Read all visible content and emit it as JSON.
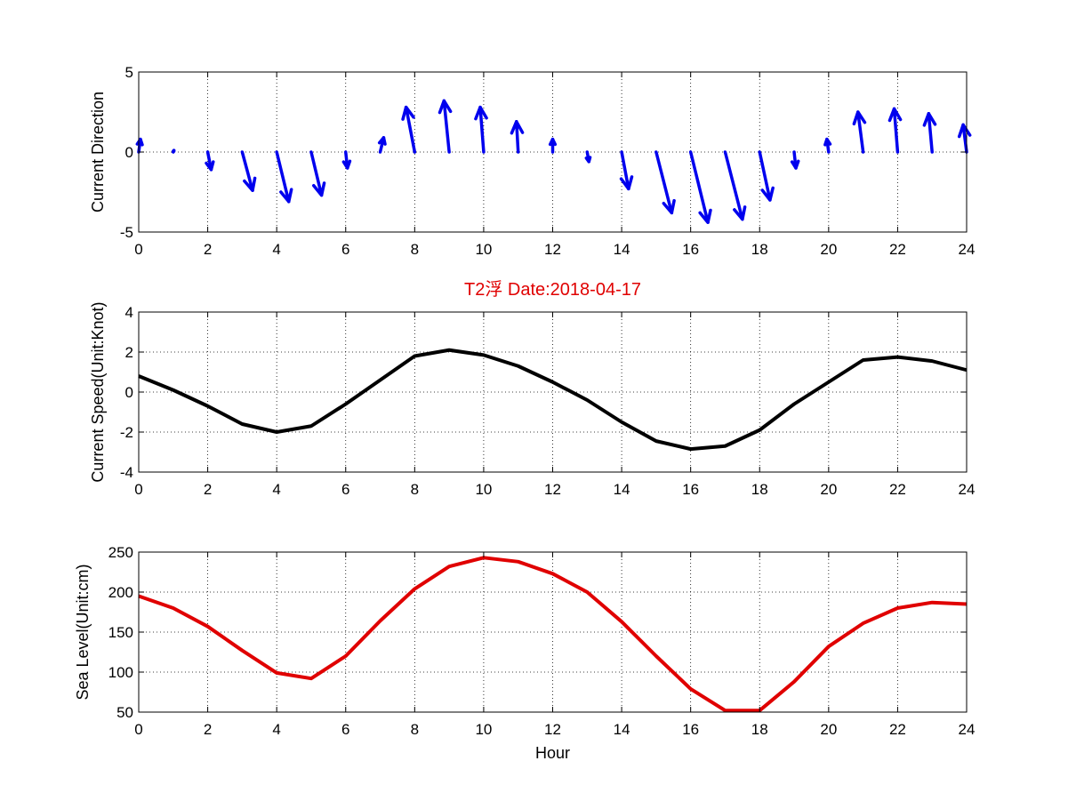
{
  "chart_data": [
    {
      "type": "quiver",
      "id": "direction",
      "title": "",
      "xlabel": "",
      "ylabel": "Current Direction",
      "xlim": [
        0,
        24
      ],
      "ylim": [
        -5,
        5
      ],
      "xticks": [
        0,
        2,
        4,
        6,
        8,
        10,
        12,
        14,
        16,
        18,
        20,
        22,
        24
      ],
      "yticks": [
        -5,
        0,
        5
      ],
      "grid": true,
      "color": "#0000ee",
      "vectors": [
        {
          "x": 0,
          "u": 0.05,
          "v": 0.8
        },
        {
          "x": 1,
          "u": 0.02,
          "v": 0.1
        },
        {
          "x": 2,
          "u": 0.1,
          "v": -1.1
        },
        {
          "x": 3,
          "u": 0.3,
          "v": -2.4
        },
        {
          "x": 4,
          "u": 0.35,
          "v": -3.1
        },
        {
          "x": 5,
          "u": 0.3,
          "v": -2.7
        },
        {
          "x": 6,
          "u": 0.05,
          "v": -1.0
        },
        {
          "x": 7,
          "u": 0.1,
          "v": 0.9
        },
        {
          "x": 8,
          "u": -0.25,
          "v": 2.8
        },
        {
          "x": 9,
          "u": -0.15,
          "v": 3.2
        },
        {
          "x": 10,
          "u": -0.1,
          "v": 2.8
        },
        {
          "x": 11,
          "u": -0.05,
          "v": 1.9
        },
        {
          "x": 12,
          "u": 0.0,
          "v": 0.8
        },
        {
          "x": 13,
          "u": 0.05,
          "v": -0.6
        },
        {
          "x": 14,
          "u": 0.2,
          "v": -2.3
        },
        {
          "x": 15,
          "u": 0.45,
          "v": -3.8
        },
        {
          "x": 16,
          "u": 0.5,
          "v": -4.4
        },
        {
          "x": 17,
          "u": 0.5,
          "v": -4.2
        },
        {
          "x": 18,
          "u": 0.3,
          "v": -3.0
        },
        {
          "x": 19,
          "u": 0.05,
          "v": -1.0
        },
        {
          "x": 20,
          "u": -0.05,
          "v": 0.8
        },
        {
          "x": 21,
          "u": -0.15,
          "v": 2.5
        },
        {
          "x": 22,
          "u": -0.1,
          "v": 2.7
        },
        {
          "x": 23,
          "u": -0.1,
          "v": 2.4
        },
        {
          "x": 24,
          "u": -0.1,
          "v": 1.7
        }
      ]
    },
    {
      "type": "line",
      "id": "speed",
      "title": "T2浮    Date:2018-04-17",
      "xlabel": "",
      "ylabel": "Current Speed(Unit:Knot)",
      "xlim": [
        0,
        24
      ],
      "ylim": [
        -4,
        4
      ],
      "xticks": [
        0,
        2,
        4,
        6,
        8,
        10,
        12,
        14,
        16,
        18,
        20,
        22,
        24
      ],
      "yticks": [
        -4,
        -2,
        0,
        2,
        4
      ],
      "grid": true,
      "color": "#000000",
      "x": [
        0,
        1,
        2,
        3,
        4,
        5,
        6,
        7,
        8,
        9,
        10,
        11,
        12,
        13,
        14,
        15,
        16,
        17,
        18,
        19,
        20,
        21,
        22,
        23,
        24
      ],
      "y": [
        0.8,
        0.1,
        -0.7,
        -1.6,
        -2.0,
        -1.7,
        -0.6,
        0.6,
        1.8,
        2.1,
        1.85,
        1.3,
        0.5,
        -0.4,
        -1.5,
        -2.45,
        -2.85,
        -2.7,
        -1.9,
        -0.6,
        0.5,
        1.6,
        1.75,
        1.55,
        1.1
      ]
    },
    {
      "type": "line",
      "id": "sealevel",
      "title": "",
      "xlabel": "Hour",
      "ylabel": "Sea Level(Unit:cm)",
      "xlim": [
        0,
        24
      ],
      "ylim": [
        50,
        250
      ],
      "xticks": [
        0,
        2,
        4,
        6,
        8,
        10,
        12,
        14,
        16,
        18,
        20,
        22,
        24
      ],
      "yticks": [
        50,
        100,
        150,
        200,
        250
      ],
      "grid": true,
      "color": "#e00000",
      "x": [
        0,
        1,
        2,
        3,
        4,
        5,
        6,
        7,
        8,
        9,
        10,
        11,
        12,
        13,
        14,
        15,
        16,
        17,
        18,
        19,
        20,
        21,
        22,
        23,
        24
      ],
      "y": [
        195,
        180,
        157,
        127,
        99,
        92,
        120,
        164,
        204,
        232,
        243,
        238,
        223,
        200,
        163,
        120,
        79,
        52,
        52,
        88,
        132,
        161,
        180,
        187,
        185
      ]
    }
  ]
}
